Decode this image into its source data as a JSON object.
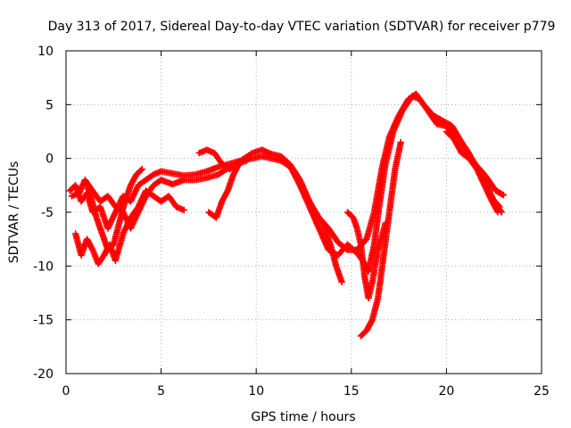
{
  "chart_data": {
    "type": "scatter",
    "title": "Day 313 of 2017, Sidereal Day-to-day VTEC variation (SDTVAR) for receiver p779",
    "xlabel": "GPS time / hours",
    "ylabel": "SDTVAR / TECUs",
    "xlim": [
      0,
      25
    ],
    "ylim": [
      -20,
      10
    ],
    "xticks": [
      0,
      5,
      10,
      15,
      20,
      25
    ],
    "yticks": [
      -20,
      -15,
      -10,
      -5,
      0,
      5,
      10
    ],
    "grid": true,
    "marker": "+",
    "series": [
      {
        "name": "SDTVAR",
        "color": "#ff0000",
        "segments": [
          [
            [
              0.2,
              -3.0
            ],
            [
              0.5,
              -2.5
            ],
            [
              0.8,
              -4.0
            ],
            [
              1.1,
              -3.2
            ],
            [
              1.4,
              -5.0
            ],
            [
              1.8,
              -4.5
            ],
            [
              2.2,
              -6.5
            ],
            [
              2.6,
              -5.0
            ],
            [
              3.0,
              -3.5
            ],
            [
              3.4,
              -4.0
            ],
            [
              3.8,
              -2.5
            ],
            [
              4.2,
              -2.0
            ],
            [
              4.6,
              -1.5
            ],
            [
              5.0,
              -1.2
            ],
            [
              5.6,
              -1.4
            ],
            [
              6.2,
              -1.6
            ],
            [
              6.8,
              -1.5
            ],
            [
              7.4,
              -1.2
            ],
            [
              8.0,
              -0.8
            ],
            [
              8.6,
              -0.5
            ],
            [
              9.2,
              -0.2
            ],
            [
              9.8,
              0.5
            ],
            [
              10.3,
              0.8
            ],
            [
              10.8,
              0.4
            ],
            [
              11.3,
              0.2
            ],
            [
              11.8,
              -0.6
            ],
            [
              12.3,
              -2.0
            ],
            [
              12.8,
              -4.0
            ],
            [
              13.3,
              -5.5
            ],
            [
              13.8,
              -6.5
            ],
            [
              14.3,
              -7.8
            ],
            [
              14.8,
              -8.5
            ],
            [
              15.3,
              -8.5
            ],
            [
              15.8,
              -7.5
            ],
            [
              16.2,
              -5.0
            ],
            [
              16.6,
              -1.0
            ],
            [
              17.0,
              2.0
            ],
            [
              17.5,
              4.0
            ],
            [
              18.0,
              5.5
            ],
            [
              18.4,
              6.0
            ],
            [
              18.8,
              5.0
            ],
            [
              19.3,
              4.0
            ],
            [
              19.8,
              3.5
            ],
            [
              20.3,
              3.0
            ],
            [
              20.8,
              1.5
            ],
            [
              21.3,
              0.0
            ],
            [
              21.8,
              -1.5
            ],
            [
              22.3,
              -3.5
            ],
            [
              22.8,
              -4.5
            ]
          ],
          [
            [
              0.3,
              -3.5
            ],
            [
              0.7,
              -3.2
            ],
            [
              1.0,
              -2.0
            ],
            [
              1.4,
              -3.0
            ],
            [
              1.8,
              -4.0
            ],
            [
              2.2,
              -3.5
            ],
            [
              2.6,
              -4.5
            ],
            [
              3.0,
              -5.0
            ],
            [
              3.4,
              -6.5
            ],
            [
              3.8,
              -5.0
            ],
            [
              4.2,
              -3.5
            ],
            [
              4.6,
              -2.5
            ],
            [
              5.0,
              -2.0
            ],
            [
              5.6,
              -2.4
            ],
            [
              6.2,
              -2.0
            ],
            [
              6.8,
              -2.0
            ],
            [
              7.4,
              -1.8
            ],
            [
              8.0,
              -1.5
            ],
            [
              8.6,
              -0.8
            ],
            [
              9.2,
              -0.2
            ],
            [
              9.8,
              0.0
            ],
            [
              10.3,
              0.2
            ],
            [
              10.8,
              0.0
            ],
            [
              11.3,
              -0.2
            ],
            [
              11.8,
              -0.8
            ],
            [
              12.3,
              -2.5
            ],
            [
              12.8,
              -4.5
            ],
            [
              13.3,
              -6.5
            ],
            [
              13.8,
              -8.5
            ],
            [
              14.3,
              -9.0
            ],
            [
              14.8,
              -8.0
            ],
            [
              15.3,
              -8.8
            ],
            [
              15.6,
              -9.5
            ],
            [
              15.9,
              -10.5
            ],
            [
              16.2,
              -8.0
            ],
            [
              16.5,
              -4.0
            ],
            [
              16.8,
              -0.5
            ],
            [
              17.2,
              2.5
            ],
            [
              17.7,
              4.5
            ],
            [
              18.2,
              5.8
            ],
            [
              18.6,
              5.5
            ],
            [
              19.0,
              4.5
            ],
            [
              19.5,
              3.2
            ],
            [
              20.0,
              3.0
            ],
            [
              20.5,
              2.0
            ],
            [
              21.0,
              1.0
            ],
            [
              21.5,
              -0.5
            ],
            [
              22.0,
              -2.0
            ],
            [
              22.5,
              -4.0
            ],
            [
              22.9,
              -5.0
            ]
          ],
          [
            [
              0.5,
              -7.0
            ],
            [
              0.8,
              -9.0
            ],
            [
              1.1,
              -7.5
            ],
            [
              1.4,
              -8.5
            ],
            [
              1.7,
              -9.8
            ],
            [
              2.0,
              -9.0
            ],
            [
              2.3,
              -8.0
            ],
            [
              2.6,
              -9.5
            ],
            [
              3.0,
              -7.0
            ],
            [
              3.4,
              -5.5
            ],
            [
              3.8,
              -4.5
            ],
            [
              4.2,
              -3.0
            ],
            [
              4.6,
              -3.5
            ],
            [
              5.0,
              -4.0
            ],
            [
              5.4,
              -3.5
            ],
            [
              5.8,
              -4.5
            ],
            [
              6.2,
              -4.8
            ]
          ],
          [
            [
              1.0,
              -2.0
            ],
            [
              1.3,
              -3.5
            ],
            [
              1.6,
              -5.5
            ],
            [
              1.9,
              -7.0
            ],
            [
              2.2,
              -8.5
            ],
            [
              2.5,
              -8.0
            ],
            [
              2.8,
              -6.0
            ],
            [
              3.1,
              -4.0
            ],
            [
              3.4,
              -2.5
            ],
            [
              3.7,
              -1.5
            ],
            [
              4.0,
              -1.0
            ]
          ],
          [
            [
              7.5,
              -5.0
            ],
            [
              7.9,
              -5.5
            ],
            [
              8.2,
              -4.0
            ],
            [
              8.5,
              -3.0
            ],
            [
              8.8,
              -1.5
            ],
            [
              9.1,
              -0.5
            ],
            [
              9.4,
              0.0
            ]
          ],
          [
            [
              7.0,
              0.5
            ],
            [
              7.4,
              0.8
            ],
            [
              7.8,
              0.5
            ],
            [
              8.2,
              -0.5
            ],
            [
              8.6,
              -1.0
            ],
            [
              9.0,
              -0.5
            ],
            [
              9.5,
              -0.2
            ]
          ],
          [
            [
              13.5,
              -6.0
            ],
            [
              13.9,
              -8.0
            ],
            [
              14.2,
              -10.0
            ],
            [
              14.5,
              -11.5
            ]
          ],
          [
            [
              14.8,
              -5.0
            ],
            [
              15.1,
              -5.5
            ],
            [
              15.3,
              -6.5
            ],
            [
              15.5,
              -8.0
            ],
            [
              15.7,
              -11.0
            ],
            [
              15.9,
              -13.0
            ],
            [
              16.1,
              -11.5
            ],
            [
              16.4,
              -8.5
            ],
            [
              16.8,
              -6.0
            ]
          ],
          [
            [
              15.5,
              -16.5
            ],
            [
              15.8,
              -16.0
            ],
            [
              16.1,
              -15.0
            ],
            [
              16.4,
              -13.0
            ],
            [
              16.7,
              -9.0
            ],
            [
              17.0,
              -5.0
            ],
            [
              17.3,
              -1.0
            ],
            [
              17.6,
              1.5
            ]
          ],
          [
            [
              21.0,
              0.5
            ],
            [
              21.5,
              -0.5
            ],
            [
              22.0,
              -1.5
            ],
            [
              22.4,
              -2.5
            ],
            [
              22.6,
              -3.0
            ],
            [
              22.8,
              -3.2
            ],
            [
              23.0,
              -3.4
            ]
          ],
          [
            [
              20.0,
              2.5
            ],
            [
              20.4,
              1.8
            ],
            [
              20.8,
              0.5
            ],
            [
              21.2,
              0.0
            ],
            [
              21.6,
              -1.0
            ],
            [
              22.0,
              -2.5
            ],
            [
              22.4,
              -4.0
            ],
            [
              22.7,
              -5.0
            ]
          ]
        ]
      }
    ]
  }
}
